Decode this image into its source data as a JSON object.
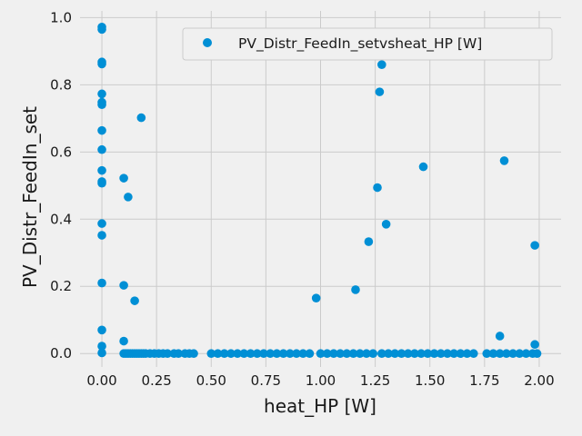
{
  "chart_data": {
    "type": "scatter",
    "title": "",
    "xlabel": "heat_HP [W]",
    "ylabel": "PV_Distr_FeedIn_set",
    "xlim": [
      -0.1,
      2.1
    ],
    "ylim": [
      -0.04,
      1.02
    ],
    "xticks": [
      0.0,
      0.25,
      0.5,
      0.75,
      1.0,
      1.25,
      1.5,
      1.75,
      2.0
    ],
    "xtick_labels": [
      "0.00",
      "0.25",
      "0.50",
      "0.75",
      "1.00",
      "1.25",
      "1.50",
      "1.75",
      "2.00"
    ],
    "yticks": [
      0.0,
      0.2,
      0.4,
      0.6,
      0.8,
      1.0
    ],
    "ytick_labels": [
      "0.0",
      "0.2",
      "0.4",
      "0.6",
      "0.8",
      "1.0"
    ],
    "grid": true,
    "legend_position": "top-right",
    "series": [
      {
        "name": "PV_Distr_FeedIn_setvsheat_HP [W]",
        "color": "#008fd5",
        "points": [
          [
            0.0,
            0.972
          ],
          [
            0.0,
            0.965
          ],
          [
            0.0,
            0.868
          ],
          [
            0.0,
            0.862
          ],
          [
            0.0,
            0.773
          ],
          [
            0.0,
            0.748
          ],
          [
            0.0,
            0.741
          ],
          [
            0.0,
            0.664
          ],
          [
            0.0,
            0.607
          ],
          [
            0.0,
            0.545
          ],
          [
            0.0,
            0.512
          ],
          [
            0.0,
            0.507
          ],
          [
            0.0,
            0.387
          ],
          [
            0.0,
            0.352
          ],
          [
            0.0,
            0.21
          ],
          [
            0.0,
            0.07
          ],
          [
            0.0,
            0.022
          ],
          [
            0.0,
            0.002
          ],
          [
            0.1,
            0.522
          ],
          [
            0.12,
            0.466
          ],
          [
            0.18,
            0.702
          ],
          [
            0.1,
            0.203
          ],
          [
            0.15,
            0.157
          ],
          [
            0.1,
            0.037
          ],
          [
            0.98,
            0.165
          ],
          [
            1.16,
            0.19
          ],
          [
            1.22,
            0.333
          ],
          [
            1.26,
            0.494
          ],
          [
            1.27,
            0.779
          ],
          [
            1.28,
            0.86
          ],
          [
            1.3,
            0.385
          ],
          [
            1.47,
            0.556
          ],
          [
            1.84,
            0.574
          ],
          [
            1.82,
            0.052
          ],
          [
            1.98,
            0.322
          ],
          [
            1.98,
            0.027
          ],
          [
            0.1,
            0.0
          ],
          [
            0.11,
            0.0
          ],
          [
            0.12,
            0.0
          ],
          [
            0.13,
            0.0
          ],
          [
            0.14,
            0.0
          ],
          [
            0.15,
            0.0
          ],
          [
            0.16,
            0.0
          ],
          [
            0.17,
            0.0
          ],
          [
            0.18,
            0.0
          ],
          [
            0.19,
            0.0
          ],
          [
            0.2,
            0.0
          ],
          [
            0.22,
            0.0
          ],
          [
            0.24,
            0.0
          ],
          [
            0.26,
            0.0
          ],
          [
            0.28,
            0.0
          ],
          [
            0.3,
            0.0
          ],
          [
            0.33,
            0.0
          ],
          [
            0.35,
            0.0
          ],
          [
            0.38,
            0.0
          ],
          [
            0.4,
            0.0
          ],
          [
            0.42,
            0.0
          ],
          [
            0.5,
            0.0
          ],
          [
            0.53,
            0.0
          ],
          [
            0.56,
            0.0
          ],
          [
            0.59,
            0.0
          ],
          [
            0.62,
            0.0
          ],
          [
            0.65,
            0.0
          ],
          [
            0.68,
            0.0
          ],
          [
            0.71,
            0.0
          ],
          [
            0.74,
            0.0
          ],
          [
            0.77,
            0.0
          ],
          [
            0.8,
            0.0
          ],
          [
            0.83,
            0.0
          ],
          [
            0.86,
            0.0
          ],
          [
            0.89,
            0.0
          ],
          [
            0.92,
            0.0
          ],
          [
            0.95,
            0.0
          ],
          [
            1.0,
            0.0
          ],
          [
            1.03,
            0.0
          ],
          [
            1.06,
            0.0
          ],
          [
            1.09,
            0.0
          ],
          [
            1.12,
            0.0
          ],
          [
            1.15,
            0.0
          ],
          [
            1.18,
            0.0
          ],
          [
            1.21,
            0.0
          ],
          [
            1.24,
            0.0
          ],
          [
            1.28,
            0.0
          ],
          [
            1.31,
            0.0
          ],
          [
            1.34,
            0.0
          ],
          [
            1.37,
            0.0
          ],
          [
            1.4,
            0.0
          ],
          [
            1.43,
            0.0
          ],
          [
            1.46,
            0.0
          ],
          [
            1.49,
            0.0
          ],
          [
            1.52,
            0.0
          ],
          [
            1.55,
            0.0
          ],
          [
            1.58,
            0.0
          ],
          [
            1.61,
            0.0
          ],
          [
            1.64,
            0.0
          ],
          [
            1.67,
            0.0
          ],
          [
            1.7,
            0.0
          ],
          [
            1.76,
            0.0
          ],
          [
            1.79,
            0.0
          ],
          [
            1.82,
            0.0
          ],
          [
            1.85,
            0.0
          ],
          [
            1.88,
            0.0
          ],
          [
            1.91,
            0.0
          ],
          [
            1.94,
            0.0
          ],
          [
            1.97,
            0.0
          ],
          [
            1.99,
            0.0
          ]
        ]
      }
    ]
  }
}
